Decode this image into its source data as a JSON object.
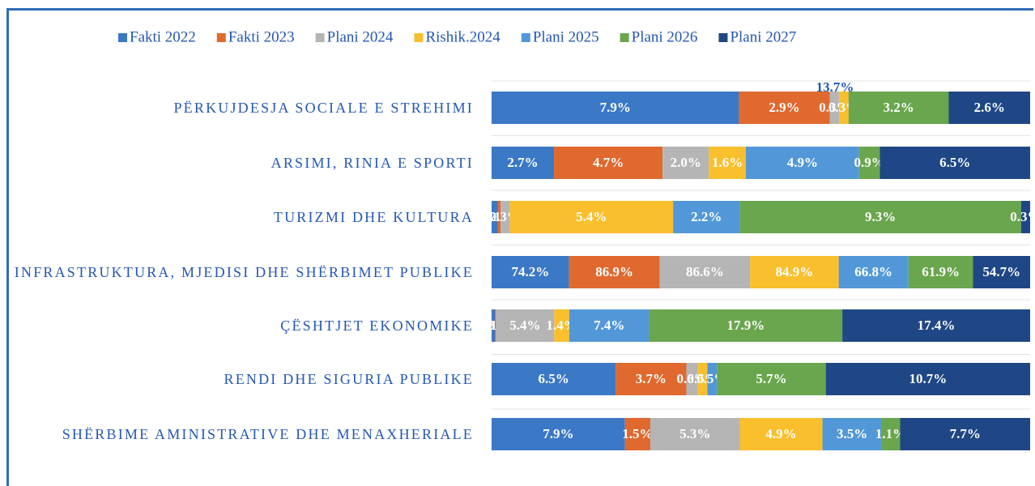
{
  "chart_data": {
    "type": "stacked-bar-100",
    "categories": [
      "PËRKUJDESJA SOCIALE E STREHIMI",
      "ARSIMI, RINIA E SPORTI",
      "TURIZMI DHE KULTURA",
      "INFRASTRUKTURA, MJEDISI DHE SHËRBIMET PUBLIKE",
      "ÇËSHTJET EKONOMIKE",
      "RENDI DHE SIGURIA PUBLIKE",
      "SHËRBIME AMINISTRATIVE DHE MENAXHERIALE"
    ],
    "series": [
      {
        "name": "Fakti 2022",
        "color": "#3b78c6",
        "values": [
          7.9,
          2.7,
          0.2,
          74.2,
          0.3,
          6.5,
          7.9
        ],
        "value_labels": [
          "7.9%",
          "2.7%",
          "0.2%",
          "74.2%",
          "0.3%",
          "6.5%",
          "7.9%"
        ]
      },
      {
        "name": "Fakti 2023",
        "color": "#e0692f",
        "values": [
          2.9,
          4.7,
          0.1,
          86.9,
          0.1,
          3.7,
          1.5
        ],
        "value_labels": [
          "2.9%",
          "4.7%",
          "0.1%",
          "86.9%",
          "0.1%",
          "3.7%",
          "1.5%"
        ]
      },
      {
        "name": "Plani 2024",
        "color": "#b5b5b5",
        "values": [
          0.3,
          2.0,
          0.3,
          86.6,
          5.4,
          0.6,
          5.3
        ],
        "value_labels": [
          "0.3%",
          "2.0%",
          "0.3%",
          "86.6%",
          "5.4%",
          "0.6%",
          "5.3%"
        ]
      },
      {
        "name": "Rishik.2024",
        "color": "#f9bf2d",
        "values": [
          0.3,
          1.6,
          5.4,
          84.9,
          1.4,
          0.5,
          4.9
        ],
        "value_labels": [
          "0.3%",
          "1.6%",
          "5.4%",
          "84.9%",
          "1.4%",
          "0.5%",
          "4.9%"
        ]
      },
      {
        "name": "Plani 2025",
        "color": "#5298d8",
        "values": [
          null,
          4.9,
          2.2,
          66.8,
          7.4,
          0.5,
          3.5
        ],
        "value_labels": [
          null,
          "4.9%",
          "2.2%",
          "66.8%",
          "7.4%",
          "0.5%",
          "3.5%"
        ]
      },
      {
        "name": "Plani 2026",
        "color": "#69a64d",
        "values": [
          3.2,
          0.9,
          9.3,
          61.9,
          17.9,
          5.7,
          1.1
        ],
        "value_labels": [
          "3.2%",
          "0.9%",
          "9.3%",
          "61.9%",
          "17.9%",
          "5.7%",
          "1.1%"
        ]
      },
      {
        "name": "Plani 2027",
        "color": "#1f4785",
        "values": [
          2.6,
          6.5,
          0.3,
          54.7,
          17.4,
          10.7,
          7.7
        ],
        "value_labels": [
          "2.6%",
          "6.5%",
          "0.3%",
          "54.7%",
          "17.4%",
          "10.7%",
          "7.7%"
        ]
      }
    ],
    "annotations": [
      "13.7%"
    ],
    "legend": "top"
  }
}
